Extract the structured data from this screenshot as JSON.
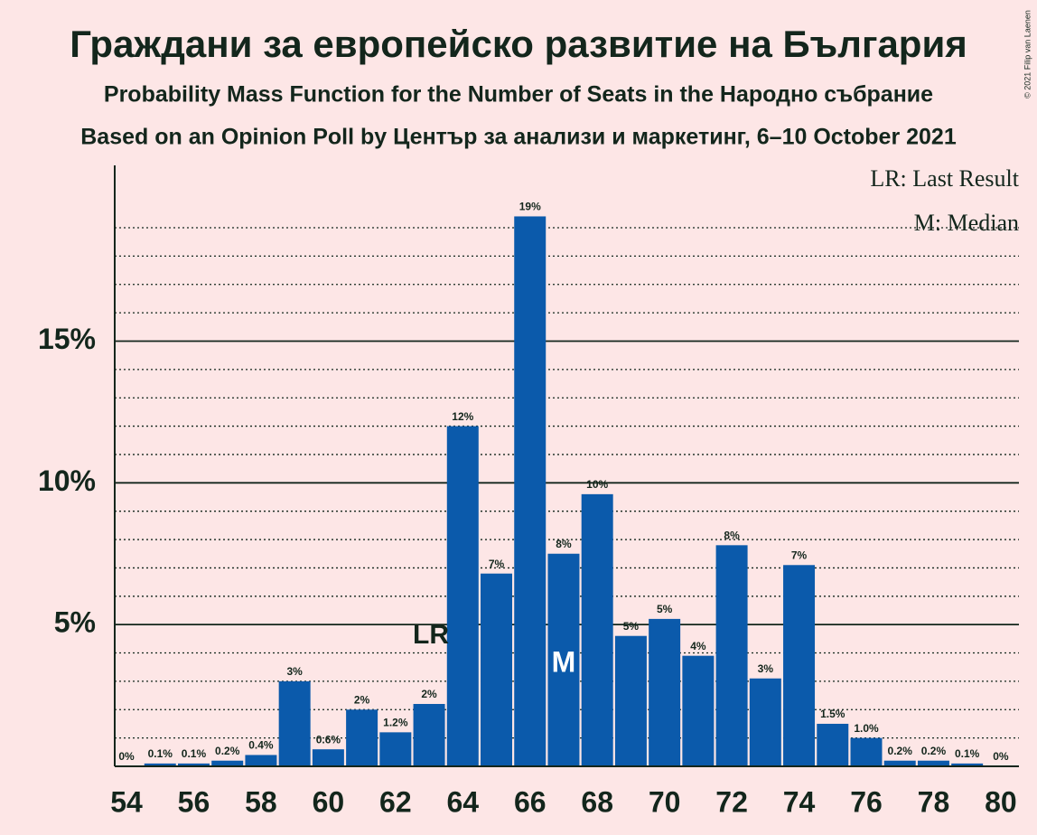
{
  "chart_data": {
    "type": "bar",
    "title": "Граждани за европейско развитие на България",
    "subtitle": "Probability Mass Function for the Number of Seats in the Народно събрание",
    "subtitle2": "Based on an Opinion Poll by Център за анализи и маркетинг, 6–10 October 2021",
    "credit": "© 2021 Filip van Laenen",
    "x": [
      54,
      55,
      56,
      57,
      58,
      59,
      60,
      61,
      62,
      63,
      64,
      65,
      66,
      67,
      68,
      69,
      70,
      71,
      72,
      73,
      74,
      75,
      76,
      77,
      78,
      79,
      80
    ],
    "values": [
      0,
      0.1,
      0.1,
      0.2,
      0.4,
      3.0,
      0.6,
      2.0,
      1.2,
      2.2,
      12.0,
      6.8,
      19.4,
      7.5,
      9.6,
      4.6,
      5.2,
      3.9,
      7.8,
      3.1,
      7.1,
      1.5,
      1.0,
      0.2,
      0.2,
      0.1,
      0
    ],
    "value_labels": [
      "0%",
      "0.1%",
      "0.1%",
      "0.2%",
      "0.4%",
      "3%",
      "0.6%",
      "2%",
      "1.2%",
      "2%",
      "12%",
      "7%",
      "19%",
      "8%",
      "10%",
      "5%",
      "5%",
      "4%",
      "8%",
      "3%",
      "7%",
      "1.5%",
      "1.0%",
      "0.2%",
      "0.2%",
      "0.1%",
      "0%"
    ],
    "color": "#0b5aab",
    "xlim": [
      53.65,
      80.54
    ],
    "xticks": [
      54,
      56,
      58,
      60,
      62,
      64,
      66,
      68,
      70,
      72,
      74,
      76,
      78,
      80
    ],
    "ylim": [
      0,
      21.2
    ],
    "yticks": [
      {
        "value": 5,
        "label": "5%"
      },
      {
        "value": 10,
        "label": "10%"
      },
      {
        "value": 15,
        "label": "15%"
      }
    ],
    "minor_yticks": [
      1,
      2,
      3,
      4,
      6,
      7,
      8,
      9,
      11,
      12,
      13,
      14,
      16,
      17,
      18,
      19
    ],
    "grid": true,
    "annotations": [
      {
        "text": "LR",
        "x": 63
      },
      {
        "text": "M",
        "x": 67
      }
    ],
    "legend": [
      "LR: Last Result",
      "M: Median"
    ]
  }
}
